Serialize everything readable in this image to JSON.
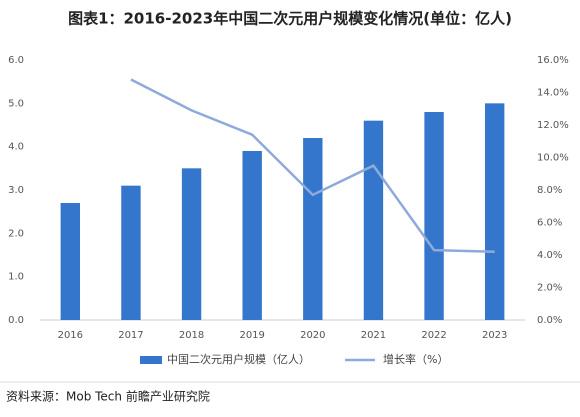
{
  "chart_data": {
    "type": "bar_line",
    "title": "图表1：2016-2023年中国二次元用户规模变化情况(单位：亿人)",
    "source": "资料来源：Mob Tech 前瞻产业研究院",
    "categories": [
      "2016",
      "2017",
      "2018",
      "2019",
      "2020",
      "2021",
      "2022",
      "2023"
    ],
    "series": [
      {
        "name": "中国二次元用户规模（亿人）",
        "type": "bar",
        "color": "#3476cc",
        "values": [
          2.7,
          3.1,
          3.5,
          3.9,
          4.2,
          4.6,
          4.8,
          5.0
        ]
      },
      {
        "name": "增长率（%）",
        "type": "line",
        "axis": "y2",
        "color": "#8eaadb",
        "values": [
          null,
          14.8,
          12.9,
          11.4,
          7.7,
          9.5,
          4.3,
          4.2
        ]
      }
    ],
    "ylim": [
      0,
      6
    ],
    "yticks": [
      {
        "value": 0,
        "label": "0.0"
      },
      {
        "value": 1,
        "label": "1.0"
      },
      {
        "value": 2,
        "label": "2.0"
      },
      {
        "value": 3,
        "label": "3.0"
      },
      {
        "value": 4,
        "label": "4.0"
      },
      {
        "value": 5,
        "label": "5.0"
      },
      {
        "value": 6,
        "label": "6.0"
      }
    ],
    "y2lim": [
      0,
      16
    ],
    "y2ticks": [
      {
        "value": 0,
        "label": "0.0%"
      },
      {
        "value": 2,
        "label": "2.0%"
      },
      {
        "value": 4,
        "label": "4.0%"
      },
      {
        "value": 6,
        "label": "6.0%"
      },
      {
        "value": 8,
        "label": "8.0%"
      },
      {
        "value": 10,
        "label": "10.0%"
      },
      {
        "value": 12,
        "label": "12.0%"
      },
      {
        "value": 14,
        "label": "14.0%"
      },
      {
        "value": 16,
        "label": "16.0%"
      }
    ],
    "grid": false
  }
}
